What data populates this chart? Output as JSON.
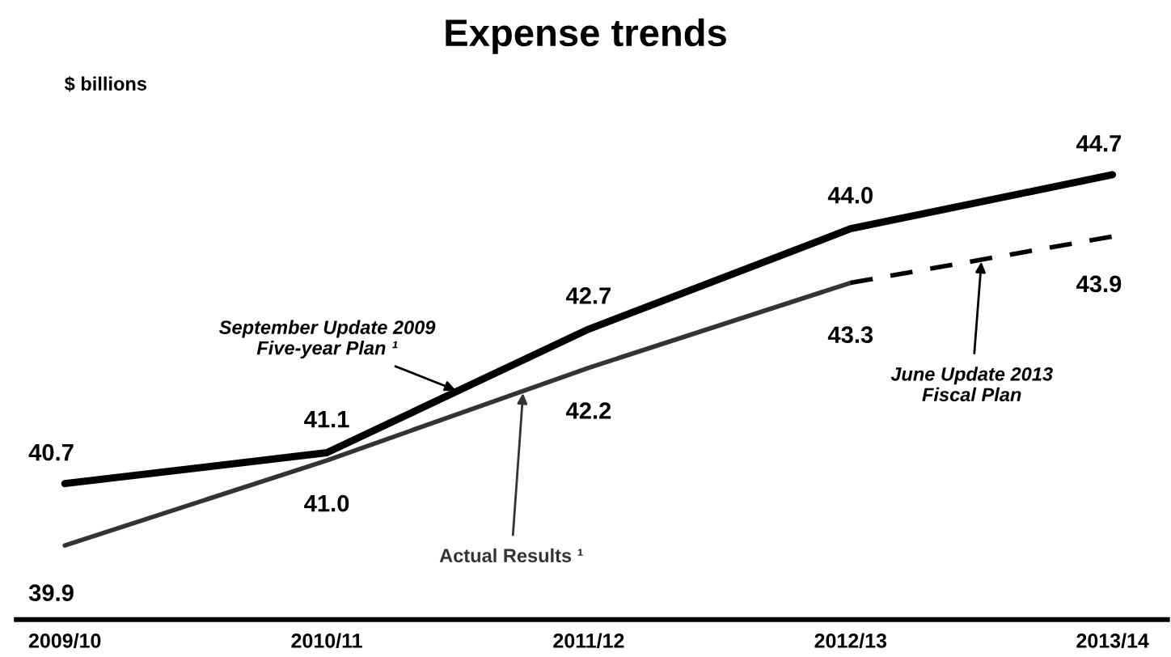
{
  "chart_data": {
    "type": "line",
    "title": "Expense trends",
    "ylabel": "$ billions",
    "categories": [
      "2009/10",
      "2010/11",
      "2011/12",
      "2012/13",
      "2013/14"
    ],
    "series": [
      {
        "name": "September Update 2009\nFive-year Plan ¹",
        "color": "#000000",
        "values": [
          40.7,
          41.1,
          42.7,
          44.0,
          44.7
        ],
        "value_labels": [
          "40.7",
          "41.1",
          "42.7",
          "44.0",
          "44.7"
        ]
      },
      {
        "name": "Actual Results ¹",
        "color": "#333333",
        "values": [
          39.9,
          41.0,
          42.2,
          43.3,
          null
        ],
        "value_labels": [
          "39.9",
          "41.0",
          "42.2",
          "43.3",
          null
        ]
      },
      {
        "name": "June Update 2013\nFiscal Plan",
        "color": "#000000",
        "line_style": "dashed",
        "values": [
          null,
          null,
          null,
          43.3,
          43.9
        ],
        "value_labels": [
          null,
          null,
          null,
          null,
          "43.9"
        ]
      }
    ],
    "tick_labels": "x",
    "grid": false,
    "legend": false,
    "marker": "none"
  }
}
